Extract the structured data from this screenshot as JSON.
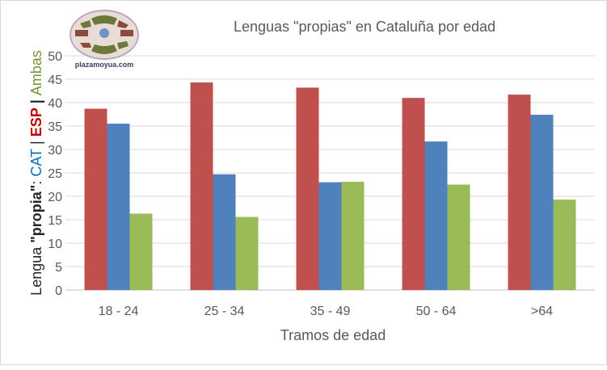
{
  "chart_data": {
    "type": "bar",
    "title": "Lenguas \"propias\" en Cataluña por edad",
    "xlabel": "Tramos de edad",
    "ylabel_parts": [
      {
        "text": "Lengua ",
        "color": "#262626",
        "bold": false
      },
      {
        "text": "\"propia\"",
        "color": "#262626",
        "bold": true
      },
      {
        "text": ": ",
        "color": "#262626",
        "bold": false
      },
      {
        "text": "CAT",
        "color": "#0070c0",
        "bold": false
      },
      {
        "text": " | ",
        "color": "#262626",
        "bold": false
      },
      {
        "text": "ESP",
        "color": "#c00000",
        "bold": true
      },
      {
        "text": " | ",
        "color": "#262626",
        "bold": true
      },
      {
        "text": "Ambas",
        "color": "#77933c",
        "bold": false
      }
    ],
    "categories": [
      "18 - 24",
      "25 - 34",
      "35 - 49",
      "50 - 64",
      ">64"
    ],
    "series": [
      {
        "key": "ESP",
        "color": "#c0504d",
        "values": [
          38.7,
          44.3,
          43.2,
          41.0,
          41.7
        ]
      },
      {
        "key": "CAT",
        "color": "#4f81bd",
        "values": [
          35.5,
          24.7,
          23.0,
          31.7,
          37.4
        ]
      },
      {
        "key": "Ambas",
        "color": "#9bbb59",
        "values": [
          16.3,
          15.6,
          23.1,
          22.5,
          19.3
        ]
      }
    ],
    "ylim": [
      0,
      50
    ],
    "yticks": [
      0,
      5,
      10,
      15,
      20,
      25,
      30,
      35,
      40,
      45,
      50
    ],
    "grid": true,
    "legend": "none"
  },
  "logo": {
    "text": "plazamoyua.com"
  }
}
